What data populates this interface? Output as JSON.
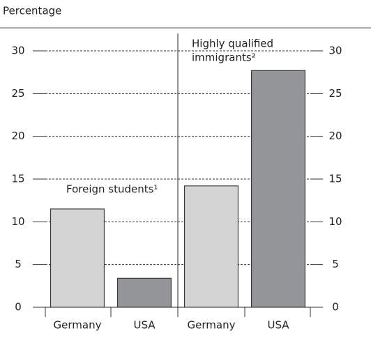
{
  "chart_data": {
    "type": "bar",
    "y_label": "Percentage",
    "categories": [
      "Germany",
      "USA",
      "Germany",
      "USA"
    ],
    "values": [
      11.5,
      3.4,
      14.2,
      27.7
    ],
    "colors": [
      "#d4d4d4",
      "#939598",
      "#d4d4d4",
      "#939598"
    ],
    "groups": [
      {
        "lines": [
          "Foreign students¹"
        ]
      },
      {
        "lines": [
          "Highly qualified",
          "immigrants²"
        ]
      }
    ],
    "ylim": [
      0,
      30
    ],
    "yticks": [
      0,
      5,
      10,
      15,
      20,
      25,
      30
    ],
    "grid": true
  }
}
